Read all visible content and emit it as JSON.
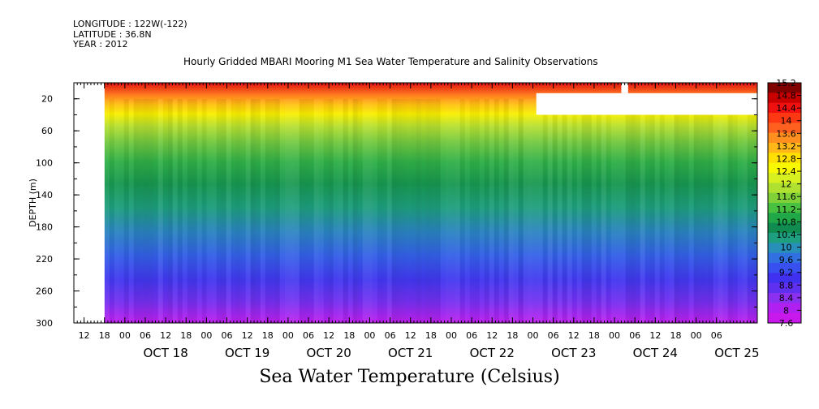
{
  "header": {
    "longitude": "LONGITUDE : 122W(-122)",
    "latitude": "LATITUDE : 36.8N",
    "year": "YEAR : 2012"
  },
  "chart_data": {
    "type": "heatmap",
    "title": "Hourly Gridded MBARI Mooring M1 Sea Water Temperature and Salinity Observations",
    "bottom_title": "Sea Water Temperature (Celsius)",
    "ylabel": "DEPTH (m)",
    "ylim": [
      300,
      0
    ],
    "y_ticks": [
      20,
      60,
      100,
      140,
      180,
      220,
      260,
      300
    ],
    "x_range": [
      "2012-10-17T09:00",
      "2012-10-25T18:00"
    ],
    "data_start": "2012-10-17T18:00",
    "x_hour_ticks": [
      "12",
      "18",
      "00",
      "06",
      "12",
      "18",
      "00",
      "06",
      "12",
      "18",
      "00",
      "06",
      "12",
      "18",
      "00",
      "06",
      "12",
      "18",
      "00",
      "06",
      "12",
      "18",
      "00",
      "06",
      "12",
      "18",
      "00",
      "06",
      "12",
      "18",
      "00",
      "06"
    ],
    "x_day_labels": [
      "OCT 18",
      "OCT 19",
      "OCT 20",
      "OCT 21",
      "OCT 22",
      "OCT 23",
      "OCT 24",
      "OCT 25"
    ],
    "colorbar_labels": [
      "15.2",
      "14.8",
      "14.4",
      "14",
      "13.6",
      "13.2",
      "12.8",
      "12.4",
      "12",
      "11.6",
      "11.2",
      "10.8",
      "10.4",
      "10",
      "9.6",
      "9.2",
      "8.8",
      "8.4",
      "8",
      "7.6"
    ],
    "colors": [
      "#800000",
      "#c80000",
      "#f01010",
      "#ff3814",
      "#ff6020",
      "#ff9020",
      "#ffb818",
      "#ffe000",
      "#f8f800",
      "#d8f020",
      "#b0e030",
      "#80d038",
      "#48c040",
      "#20a848",
      "#108c50",
      "#1ea080",
      "#2890b8",
      "#3070e0",
      "#3850f0",
      "#4030f0",
      "#6030f0",
      "#8c30f0",
      "#b020f0",
      "#c818ec"
    ],
    "temperature_by_depth": [
      {
        "depth": 0,
        "value": 14.2
      },
      {
        "depth": 15,
        "value": 13.6
      },
      {
        "depth": 30,
        "value": 12.8
      },
      {
        "depth": 50,
        "value": 11.6
      },
      {
        "depth": 80,
        "value": 10.6
      },
      {
        "depth": 120,
        "value": 10.0
      },
      {
        "depth": 160,
        "value": 9.3
      },
      {
        "depth": 200,
        "value": 8.9
      },
      {
        "depth": 240,
        "value": 8.5
      },
      {
        "depth": 280,
        "value": 8.1
      },
      {
        "depth": 300,
        "value": 7.8
      }
    ],
    "missing_regions": [
      {
        "t_start": "2012-10-17T09:00",
        "t_end": "2012-10-17T18:00",
        "depth_top": 0,
        "depth_bottom": 300
      },
      {
        "t_start": "2012-10-23T01:00",
        "t_end": "2012-10-25T18:00",
        "depth_top": 13,
        "depth_bottom": 40
      },
      {
        "t_start": "2012-10-24T02:00",
        "t_end": "2012-10-24T04:00",
        "depth_top": 0,
        "depth_bottom": 13
      }
    ]
  }
}
